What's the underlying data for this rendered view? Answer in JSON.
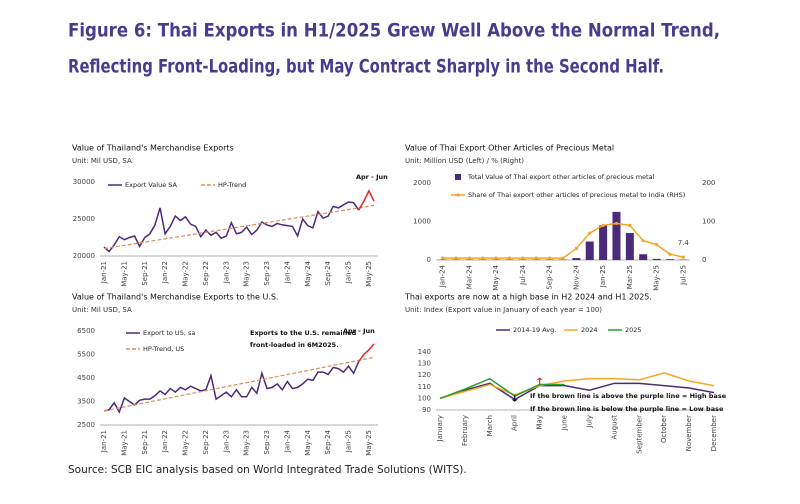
{
  "title": [
    "Figure 6: Thai Exports in H1/2025 Grew Well Above the Normal Trend,",
    "Reflecting Front-Loading, but May Contract Sharply in the Second Half."
  ],
  "source": "Source: SCB EIC analysis based on World Integrated Trade Solutions (WITS).",
  "chart_data": [
    {
      "type": "line",
      "title": "Value of Thailand's Merchandise Exports",
      "subtitle": "Unit: Mil USD, SA",
      "annotations": [
        "Apr - Jun"
      ],
      "categories": [
        "Jan-21",
        null,
        null,
        null,
        "May-21",
        null,
        null,
        null,
        "Sep-21",
        null,
        null,
        null,
        "Jan-22",
        null,
        null,
        null,
        "May-22",
        null,
        null,
        null,
        "Sep-22",
        null,
        null,
        null,
        "Jan-23",
        null,
        null,
        null,
        "May-23",
        null,
        null,
        null,
        "Sep-23",
        null,
        null,
        null,
        "Jan-24",
        null,
        null,
        null,
        "May-24",
        null,
        null,
        null,
        "Sep-24",
        null,
        null,
        null,
        "Jan-25",
        null,
        null,
        null,
        "May-25",
        null
      ],
      "ylim": [
        20000,
        30000
      ],
      "yticks": [
        20000,
        25000,
        30000
      ],
      "series": [
        {
          "name": "Export Value SA",
          "color": "#4b2a7b",
          "values": [
            21200,
            20600,
            21500,
            22600,
            22200,
            22500,
            22700,
            21300,
            22500,
            23000,
            24200,
            26500,
            23000,
            24000,
            25400,
            24800,
            25300,
            24300,
            24000,
            22600,
            23500,
            22800,
            23200,
            22400,
            22700,
            24500,
            23000,
            23200,
            23900,
            22900,
            23500,
            24600,
            24200,
            24000,
            24400,
            24200,
            24100,
            24000,
            22700,
            25000,
            24100,
            23800,
            26000,
            25100,
            25400,
            26700,
            26500,
            26900,
            27300,
            27200,
            26200,
            null,
            null,
            null
          ]
        },
        {
          "name": "HP-Trend",
          "color": "#d9905a",
          "dash": true,
          "values": [
            21000,
            21110,
            21220,
            21330,
            21440,
            21550,
            21660,
            21770,
            21880,
            21990,
            22100,
            22210,
            22320,
            22430,
            22540,
            22650,
            22760,
            22870,
            22980,
            23090,
            23200,
            23310,
            23420,
            23530,
            23640,
            23750,
            23860,
            23970,
            24080,
            24190,
            24300,
            24410,
            24520,
            24630,
            24740,
            24850,
            24960,
            25070,
            25180,
            25290,
            25400,
            25510,
            25620,
            25730,
            25840,
            25950,
            26060,
            26170,
            26280,
            26390,
            26500,
            26610,
            26720,
            26830
          ]
        },
        {
          "color": "#e8262b",
          "values": [
            null,
            null,
            null,
            null,
            null,
            null,
            null,
            null,
            null,
            null,
            null,
            null,
            null,
            null,
            null,
            null,
            null,
            null,
            null,
            null,
            null,
            null,
            null,
            null,
            null,
            null,
            null,
            null,
            null,
            null,
            null,
            null,
            null,
            null,
            null,
            null,
            null,
            null,
            null,
            null,
            null,
            null,
            null,
            null,
            null,
            null,
            null,
            null,
            null,
            null,
            26200,
            27400,
            28800,
            27400
          ]
        }
      ]
    },
    {
      "type": "bar",
      "title": "Value of Thai Export Other Articles of Precious Metal",
      "subtitle": "Unit: Million USD (Left) / % (Right)",
      "categories": [
        "Jan-24",
        null,
        "Mar-24",
        null,
        "May-24",
        null,
        "Jul-24",
        null,
        "Sep-24",
        null,
        "Nov-24",
        null,
        "Jan-25",
        null,
        "Mar-25",
        null,
        "May-25",
        null,
        "Jul-25"
      ],
      "ylim": [
        0,
        2000
      ],
      "yticks": [
        0,
        1000,
        2000
      ],
      "y2lim": [
        0,
        200
      ],
      "y2ticks": [
        0,
        100,
        200
      ],
      "series": [
        {
          "name": "Total Value of Thai export other articles of precious metal",
          "type": "bar",
          "color": "#4b2a7b",
          "values": [
            10,
            10,
            10,
            10,
            10,
            10,
            10,
            10,
            10,
            10,
            50,
            480,
            900,
            1250,
            700,
            150,
            30,
            20,
            10
          ]
        },
        {
          "name": "Share of Thai export other articles of precious metal to India (RHS)",
          "type": "line",
          "axis": "y2",
          "color": "#f5a623",
          "values": [
            5,
            5,
            5,
            5,
            5,
            5,
            5,
            5,
            5,
            5,
            30,
            70,
            90,
            95,
            90,
            50,
            40,
            15,
            7.4
          ],
          "value_labels": [
            null,
            null,
            null,
            null,
            null,
            null,
            null,
            null,
            null,
            null,
            null,
            null,
            null,
            null,
            null,
            null,
            null,
            null,
            "7.4"
          ]
        }
      ]
    },
    {
      "type": "line",
      "title": "Value of Thailand's Merchandise Exports to the U.S.",
      "subtitle": "Unit: Mil USD, SA",
      "annotations": [
        "Exports to the U.S. remained",
        "front-loaded in 6M2025.",
        "Apr - Jun"
      ],
      "categories": [
        "Jan-21",
        null,
        null,
        null,
        "May-21",
        null,
        null,
        null,
        "Sep-21",
        null,
        null,
        null,
        "Jan-22",
        null,
        null,
        null,
        "May-22",
        null,
        null,
        null,
        "Sep-22",
        null,
        null,
        null,
        "Jan-23",
        null,
        null,
        null,
        "May-23",
        null,
        null,
        null,
        "Sep-23",
        null,
        null,
        null,
        "Jan-24",
        null,
        null,
        null,
        "May-24",
        null,
        null,
        null,
        "Sep-24",
        null,
        null,
        null,
        "Jan-25",
        null,
        null,
        null,
        "May-25",
        null
      ],
      "ylim": [
        2500,
        6500
      ],
      "yticks": [
        2500,
        3500,
        4500,
        5500,
        6500
      ],
      "series": [
        {
          "name": "Export to US, sa",
          "color": "#4b2a7b",
          "values": [
            3100,
            3150,
            3450,
            3050,
            3650,
            3500,
            3350,
            3550,
            3600,
            3600,
            3750,
            3950,
            3800,
            4050,
            3900,
            4100,
            4000,
            4150,
            4050,
            3950,
            4000,
            4600,
            3600,
            3750,
            3900,
            3700,
            4000,
            3700,
            3700,
            4100,
            3850,
            4700,
            4050,
            4100,
            4250,
            4000,
            4350,
            4050,
            4100,
            4250,
            4450,
            4400,
            4750,
            4750,
            4650,
            4950,
            4900,
            4750,
            5000,
            4700,
            5200,
            null,
            null,
            null
          ]
        },
        {
          "name": "HP-Trend, US",
          "color": "#d9905a",
          "dash": true,
          "values": [
            3100,
            3143,
            3186,
            3229,
            3272,
            3315,
            3358,
            3401,
            3444,
            3487,
            3530,
            3573,
            3616,
            3659,
            3702,
            3745,
            3788,
            3831,
            3874,
            3917,
            3960,
            4003,
            4046,
            4089,
            4132,
            4175,
            4218,
            4261,
            4304,
            4347,
            4390,
            4433,
            4476,
            4519,
            4562,
            4605,
            4648,
            4691,
            4734,
            4777,
            4820,
            4863,
            4906,
            4949,
            4992,
            5035,
            5078,
            5121,
            5164,
            5207,
            5250,
            5293,
            5336,
            5379
          ]
        },
        {
          "color": "#e8262b",
          "values": [
            null,
            null,
            null,
            null,
            null,
            null,
            null,
            null,
            null,
            null,
            null,
            null,
            null,
            null,
            null,
            null,
            null,
            null,
            null,
            null,
            null,
            null,
            null,
            null,
            null,
            null,
            null,
            null,
            null,
            null,
            null,
            null,
            null,
            null,
            null,
            null,
            null,
            null,
            null,
            null,
            null,
            null,
            null,
            null,
            null,
            null,
            null,
            null,
            null,
            null,
            5200,
            5500,
            5700,
            5950
          ]
        }
      ]
    },
    {
      "type": "line",
      "title": "Thai exports are now at a high base in H2 2024 and H1 2025.",
      "subtitle": "Unit: Index (Export value in January of each year = 100)",
      "annotations": [
        "If the brown  line is above the purple line = High base",
        "If the brown  line is below the purple line = Low base"
      ],
      "categories": [
        "January",
        "February",
        "March",
        "April",
        "May",
        "June",
        "July",
        "August",
        "September",
        "October",
        "November",
        "December"
      ],
      "ylim": [
        90,
        140
      ],
      "yticks": [
        90,
        100,
        110,
        120,
        130,
        140
      ],
      "series": [
        {
          "name": "2014-19 Avg.",
          "color": "#4b2a7b",
          "values": [
            100,
            107,
            113,
            99,
            111,
            111,
            107,
            113,
            113,
            111,
            109,
            105
          ]
        },
        {
          "name": "2024",
          "color": "#f5a623",
          "values": [
            100,
            106,
            112,
            103,
            111,
            115,
            117,
            117,
            116,
            122,
            115,
            111
          ]
        },
        {
          "name": "2025",
          "color": "#2ca02c",
          "values": [
            100,
            108,
            117,
            102,
            112,
            112,
            null,
            null,
            null,
            null,
            null,
            null
          ]
        }
      ]
    }
  ]
}
